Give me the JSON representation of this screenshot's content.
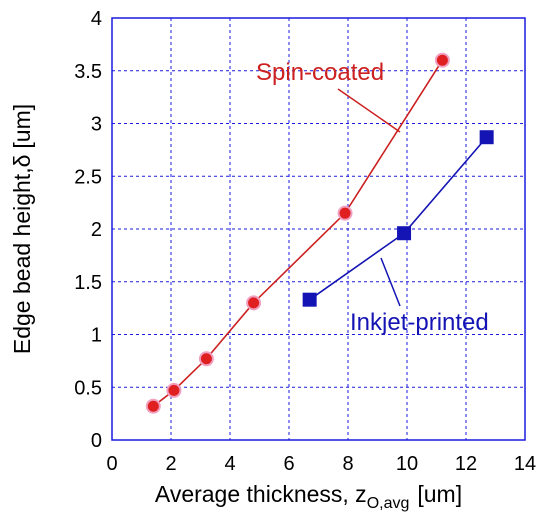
{
  "chart_data": {
    "type": "scatter",
    "xlabel": "Average thickness, z",
    "xlabel_sub": "O,avg",
    "xlabel_unit": "[um]",
    "ylabel": "Edge bead height,",
    "ylabel_symbol": "δ",
    "ylabel_unit": "[um]",
    "xlim": [
      0,
      14
    ],
    "ylim": [
      0,
      4
    ],
    "xticks": [
      0,
      2,
      4,
      6,
      8,
      10,
      12,
      14
    ],
    "yticks": [
      0,
      0.5,
      1,
      1.5,
      2,
      2.5,
      3,
      3.5,
      4
    ],
    "xtick_labels": [
      "0",
      "2",
      "4",
      "6",
      "8",
      "10",
      "12",
      "14"
    ],
    "ytick_labels": [
      "0",
      "0.5",
      "1",
      "1.5",
      "2",
      "2.5",
      "3",
      "3.5",
      "4"
    ],
    "grid": true,
    "series": [
      {
        "name": "Spin-coated",
        "color": "#cc2020",
        "marker": "circle",
        "x": [
          1.4,
          2.1,
          3.2,
          4.8,
          7.9,
          11.2
        ],
        "y": [
          0.32,
          0.47,
          0.77,
          1.3,
          2.15,
          3.6
        ]
      },
      {
        "name": "Inkjet-printed",
        "color": "#1414b4",
        "marker": "square",
        "x": [
          6.7,
          9.9,
          12.7
        ],
        "y": [
          1.33,
          1.96,
          2.87
        ]
      }
    ],
    "annotations": [
      {
        "text": "Spin-coated",
        "series": 0
      },
      {
        "text": "Inkjet-printed",
        "series": 1
      }
    ]
  }
}
